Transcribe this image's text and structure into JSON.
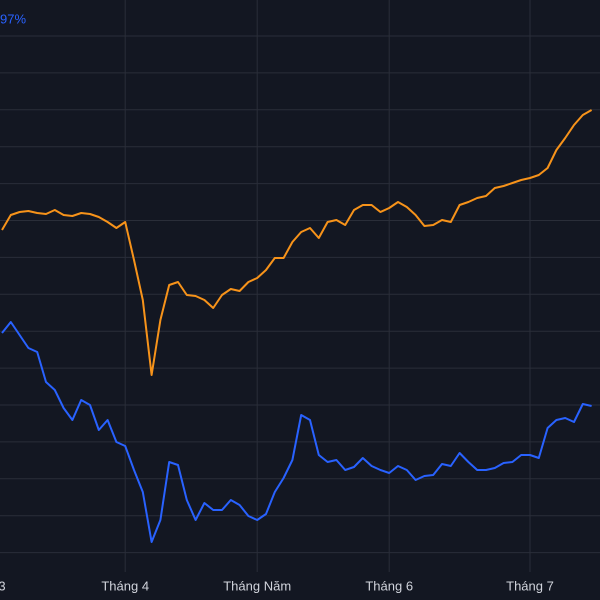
{
  "chart_data": {
    "type": "line",
    "annotation": "97%",
    "categories": [
      "3",
      null,
      null,
      null,
      null,
      null,
      null,
      null,
      null,
      null,
      null,
      null,
      null,
      null,
      "Tháng 4",
      null,
      null,
      null,
      null,
      null,
      null,
      null,
      null,
      null,
      null,
      null,
      null,
      null,
      null,
      "Tháng Năm",
      null,
      null,
      null,
      null,
      null,
      null,
      null,
      null,
      null,
      null,
      null,
      null,
      null,
      null,
      "Tháng 6",
      null,
      null,
      null,
      null,
      null,
      null,
      null,
      null,
      null,
      null,
      null,
      null,
      null,
      null,
      null,
      "Tháng 7",
      null,
      null,
      null,
      null,
      null,
      null,
      null
    ],
    "ylim": [
      0,
      600
    ],
    "grid": true,
    "series": [
      {
        "color": "#f7931a",
        "values": [
          370,
          385,
          388,
          389,
          387,
          386,
          390,
          385,
          384,
          387,
          386,
          383,
          378,
          372,
          378,
          340,
          300,
          225,
          280,
          315,
          318,
          305,
          304,
          300,
          292,
          305,
          311,
          309,
          318,
          322,
          330,
          342,
          342,
          358,
          368,
          372,
          362,
          378,
          380,
          375,
          390,
          395,
          395,
          388,
          392,
          398,
          393,
          385,
          374,
          375,
          380,
          378,
          395,
          398,
          402,
          404,
          412,
          414,
          417,
          420,
          422,
          425,
          432,
          450,
          462,
          475,
          485,
          490
        ]
      },
      {
        "color": "#2962ff",
        "values": [
          267,
          278,
          265,
          252,
          248,
          218,
          210,
          192,
          180,
          200,
          195,
          170,
          180,
          158,
          154,
          130,
          108,
          58,
          80,
          138,
          135,
          100,
          80,
          97,
          90,
          90,
          100,
          95,
          84,
          80,
          86,
          108,
          122,
          140,
          185,
          180,
          145,
          138,
          140,
          130,
          133,
          142,
          134,
          130,
          127,
          134,
          130,
          120,
          124,
          125,
          136,
          134,
          147,
          138,
          130,
          130,
          132,
          137,
          138,
          145,
          145,
          142,
          172,
          180,
          182,
          178,
          196,
          194
        ]
      }
    ]
  }
}
